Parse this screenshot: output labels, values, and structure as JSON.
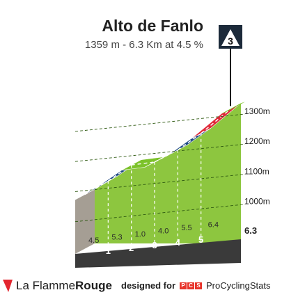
{
  "header": {
    "title": "Alto de Fanlo",
    "subtitle": "1359 m - 6.3 Km at 4.5 %",
    "category": "3"
  },
  "chart_data": {
    "type": "area",
    "title": "Alto de Fanlo",
    "subtitle": "1359 m - 6.3 Km at 4.5 %",
    "x_unit": "km",
    "y_unit": "m",
    "distance_labels": [
      "1",
      "2",
      "3",
      "4",
      "5",
      "6.3"
    ],
    "elevation_profile": {
      "x": [
        0,
        1,
        2,
        3,
        4,
        5,
        6.3
      ],
      "y": [
        1073,
        1118,
        1171,
        1181,
        1221,
        1276,
        1359
      ]
    },
    "segments": [
      {
        "km_label": "1",
        "gradient": "4.5",
        "color": "#1f4a84"
      },
      {
        "km_label": "2",
        "gradient": "5.3",
        "color": "#1f4a84"
      },
      {
        "km_label": "3",
        "gradient": "1.0",
        "color": "#7cc22a"
      },
      {
        "km_label": "4",
        "gradient": "4.0",
        "color": "#7cc22a"
      },
      {
        "km_label": "5",
        "gradient": "5.5",
        "color": "#1f4a84"
      },
      {
        "km_label": "6.3",
        "gradient": "6.4",
        "color": "#e02a3a"
      }
    ],
    "y_ticks": [
      {
        "value": 1000,
        "label": "1000m"
      },
      {
        "value": 1100,
        "label": "1100m"
      },
      {
        "value": 1200,
        "label": "1200m"
      },
      {
        "value": 1300,
        "label": "1300m"
      }
    ],
    "ylim": [
      893,
      1390
    ],
    "xlim": [
      0,
      6.3
    ],
    "legend": "none"
  },
  "colors": {
    "face": "#8dc63f",
    "side": "#a59e94",
    "base": "#3a3a3a",
    "blue": "#1f4a84",
    "red": "#e02a3a",
    "green_top": "#7cc22a"
  },
  "footer": {
    "brand_plain": "La Flamme",
    "brand_bold": "Rouge",
    "designed_for": "designed for",
    "pcs_letters": [
      "P",
      "C",
      "S"
    ],
    "pcs_name": "ProCyclingStats"
  }
}
